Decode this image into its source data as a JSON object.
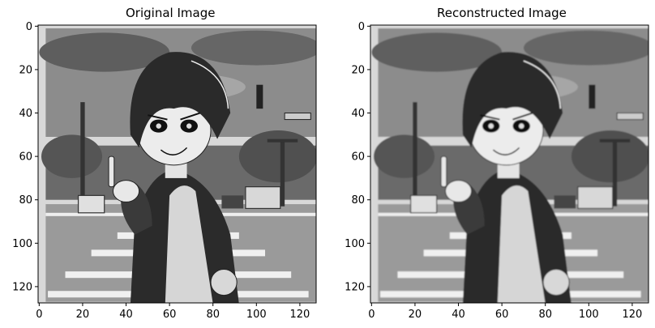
{
  "figure": {
    "panels": [
      {
        "title": "Original Image",
        "variant": "original"
      },
      {
        "title": "Reconstructed Image",
        "variant": "reconstructed"
      }
    ],
    "axes": {
      "x_ticks": [
        0,
        20,
        40,
        60,
        80,
        100,
        120
      ],
      "y_ticks": [
        0,
        20,
        40,
        60,
        80,
        100,
        120
      ],
      "x_range": [
        -0.5,
        127.5
      ],
      "y_range": [
        127.5,
        -0.5
      ]
    },
    "image_description_icons": [
      "anime-boy-illustration",
      "street-crosswalk",
      "traffic-light",
      "cars"
    ]
  }
}
